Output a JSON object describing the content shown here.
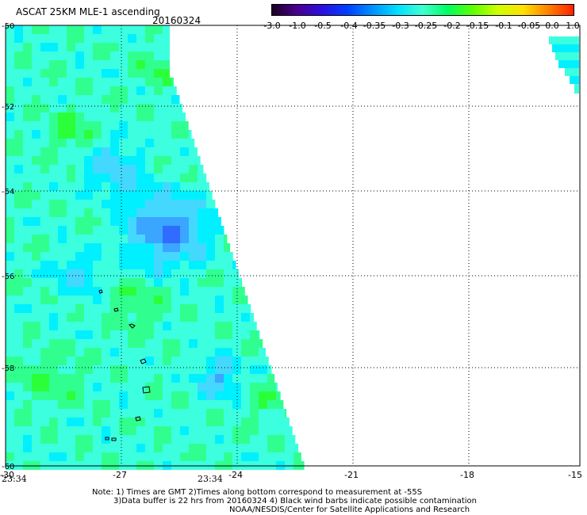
{
  "header": {
    "title": "ASCAT 25KM MLE-1 ascending",
    "date": "20160324"
  },
  "colorbar": {
    "labels": [
      "-3.0",
      "-1.0",
      "-0.5",
      "-0.4",
      "-0.35",
      "-0.3",
      "-0.25",
      "-0.2",
      "-0.15",
      "-0.1",
      "-0.05",
      "0.0",
      "1.0"
    ],
    "colors": [
      "#1a0020",
      "#4a0090",
      "#2a10e0",
      "#0040ff",
      "#0090ff",
      "#00e0ff",
      "#40ffd0",
      "#00ff60",
      "#60ff00",
      "#d0ff00",
      "#ffe000",
      "#ff8000",
      "#ff2000"
    ]
  },
  "map": {
    "lat_labels": [
      "-50",
      "-52",
      "-54",
      "-56",
      "-58",
      "-60"
    ],
    "lon_labels": [
      "-30",
      "-27",
      "-24",
      "-21",
      "-18",
      "-15"
    ],
    "time_labels": [
      "23:34",
      "23:34"
    ]
  },
  "notes": {
    "line1": "Note: 1) Times are GMT 2)Times along bottom correspond to measurement at -55S",
    "line2": "3)Data buffer is 22 hrs from 20160324 4) Black wind barbs indicate possible contamination",
    "line3": "NOAA/NESDIS/Center for Satellite Applications and Research"
  }
}
